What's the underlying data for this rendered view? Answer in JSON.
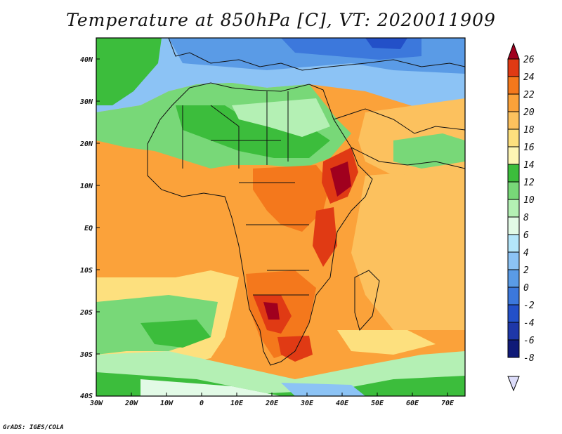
{
  "title": "Temperature at 850hPa [C], VT: 2020011909",
  "credit": "GrADS: IGES/COLA",
  "colors": {
    "frame": "#000000",
    "coast": "#111111"
  },
  "map": {
    "lat_labels": [
      "40N",
      "30N",
      "20N",
      "10N",
      "EQ",
      "10S",
      "20S",
      "30S",
      "40S"
    ],
    "lon_labels": [
      "30W",
      "20W",
      "10W",
      "0",
      "10E",
      "20E",
      "30E",
      "40E",
      "50E",
      "60E",
      "70E"
    ]
  },
  "colorbar": {
    "levels": [
      "26",
      "24",
      "22",
      "20",
      "18",
      "16",
      "14",
      "12",
      "10",
      "8",
      "6",
      "4",
      "2",
      "0",
      "-2",
      "-4",
      "-6",
      "-8"
    ],
    "colors": [
      "#a0001e",
      "#e03a14",
      "#f4781c",
      "#fba23a",
      "#fcc15e",
      "#fde07e",
      "#fdf5b4",
      "#3cbd3c",
      "#78d878",
      "#b4f0b4",
      "#e2fae6",
      "#b4e6fa",
      "#8cc3f5",
      "#5a9be6",
      "#3c78dc",
      "#2350c8",
      "#1e37a8",
      "#101a78",
      "#dcdcfa"
    ]
  }
}
